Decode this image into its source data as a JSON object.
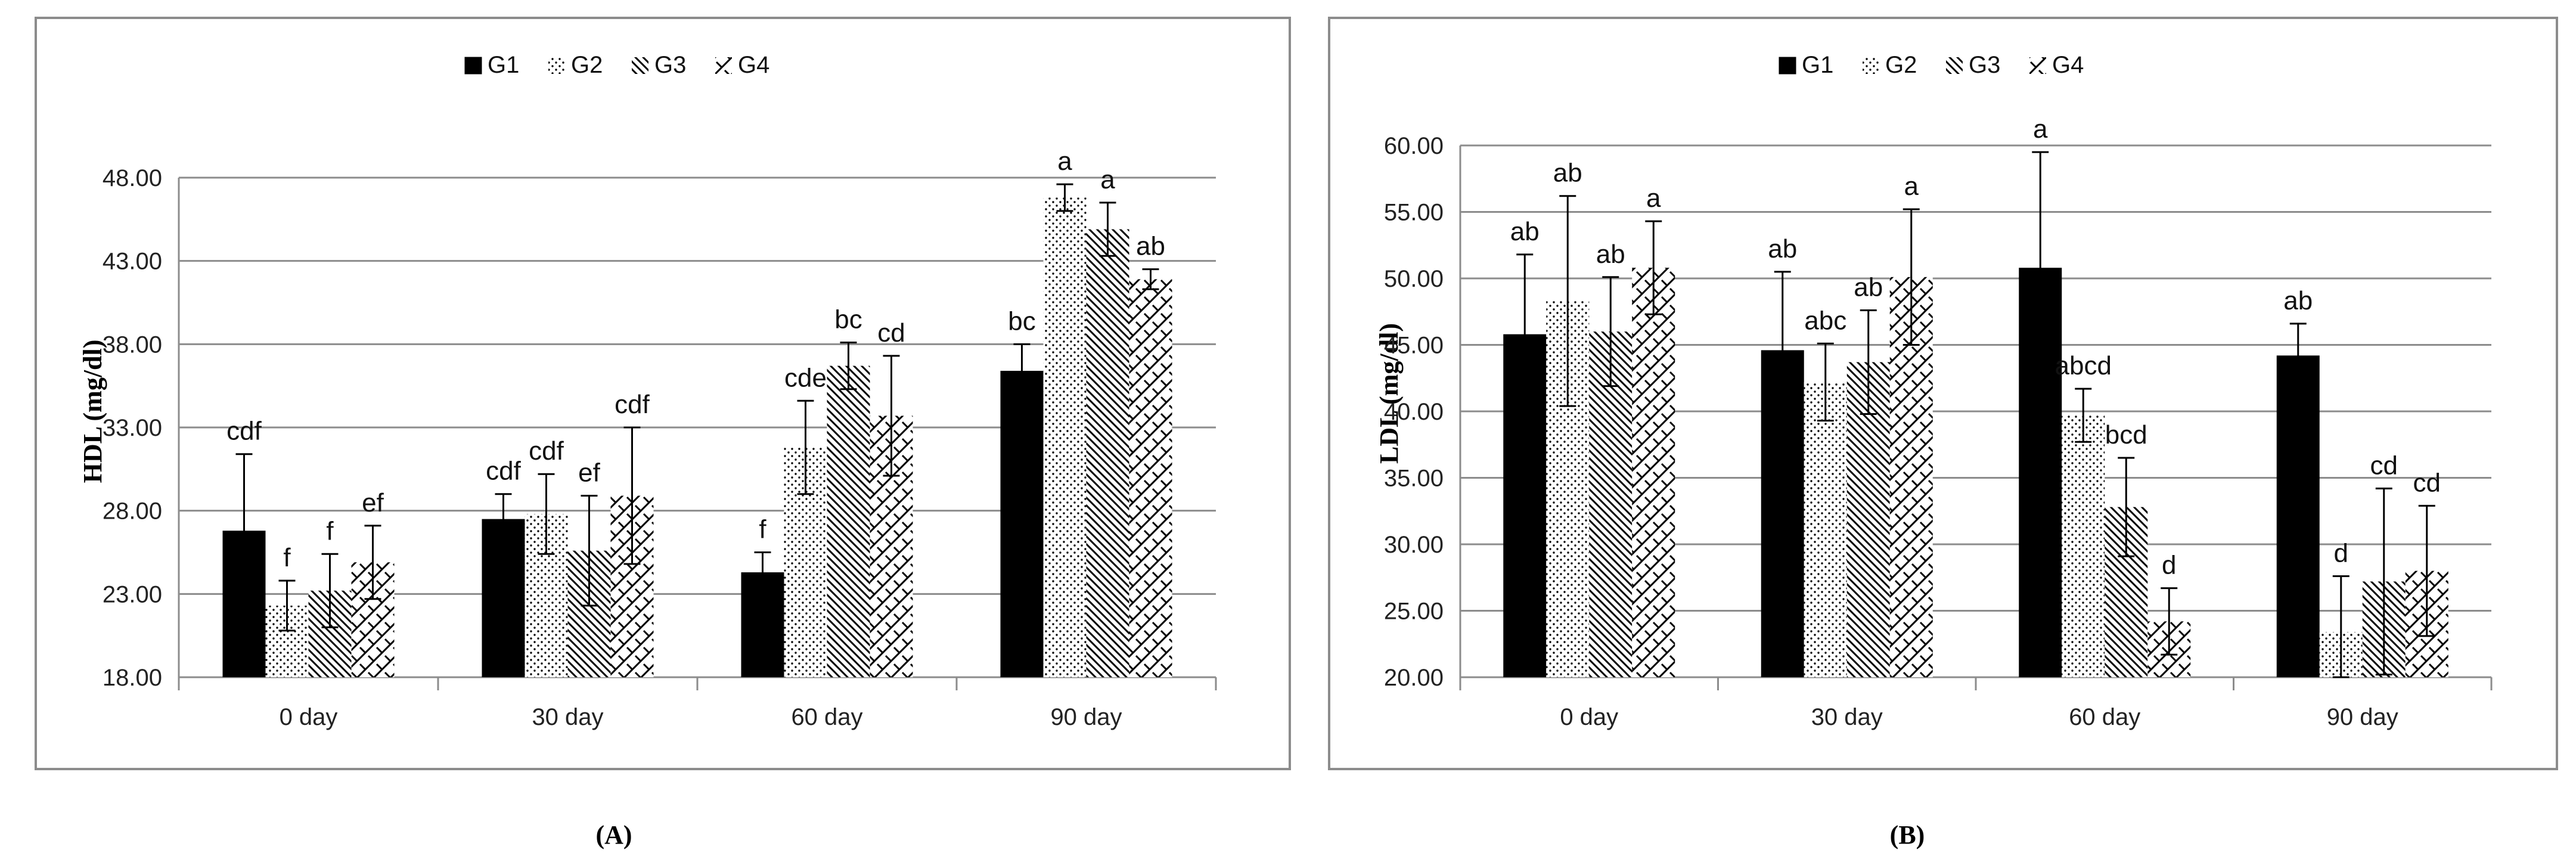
{
  "colors": {
    "frame": "#8c8c8c",
    "grid": "#8c8c8c",
    "bar_stroke": "#000000",
    "ink": "#000000"
  },
  "legend": [
    {
      "name": "G1",
      "pattern": "solid"
    },
    {
      "name": "G2",
      "pattern": "dots"
    },
    {
      "name": "G3",
      "pattern": "diagonal"
    },
    {
      "name": "G4",
      "pattern": "zigzag"
    }
  ],
  "chart_data": [
    {
      "type": "bar",
      "panel_label": "(A)",
      "ylabel": "HDL (mg/dl)",
      "xlabel": "",
      "categories": [
        "0 day",
        "30 day",
        "60 day",
        "90 day"
      ],
      "ylim": [
        18,
        48
      ],
      "yticks": [
        "18.00",
        "23.00",
        "28.00",
        "33.00",
        "38.00",
        "43.00",
        "48.00"
      ],
      "grid": true,
      "legend_position": "top-center",
      "series": [
        {
          "name": "G1",
          "values": [
            26.8,
            27.5,
            24.3,
            36.4
          ],
          "errors": [
            4.6,
            1.5,
            1.2,
            1.6
          ],
          "labels": [
            "cdf",
            "cdf",
            "f",
            "bc"
          ]
        },
        {
          "name": "G2",
          "values": [
            22.3,
            27.8,
            31.8,
            46.8
          ],
          "errors": [
            1.5,
            2.4,
            2.8,
            0.8
          ],
          "labels": [
            "f",
            "cdf",
            "cde",
            "a"
          ]
        },
        {
          "name": "G3",
          "values": [
            23.2,
            25.6,
            36.7,
            44.9
          ],
          "errors": [
            2.2,
            3.3,
            1.4,
            1.6
          ],
          "labels": [
            "f",
            "ef",
            "bc",
            "a"
          ]
        },
        {
          "name": "G4",
          "values": [
            24.9,
            28.9,
            33.7,
            41.9
          ],
          "errors": [
            2.2,
            4.1,
            3.6,
            0.6
          ],
          "labels": [
            "ef",
            "cdf",
            "cd",
            "ab"
          ]
        }
      ]
    },
    {
      "type": "bar",
      "panel_label": "(B)",
      "ylabel": "LDL (mg/dl)",
      "xlabel": "",
      "categories": [
        "0 day",
        "30 day",
        "60 day",
        "90 day"
      ],
      "ylim": [
        20,
        60
      ],
      "yticks": [
        "20.00",
        "25.00",
        "30.00",
        "35.00",
        "40.00",
        "45.00",
        "50.00",
        "55.00",
        "60.00"
      ],
      "grid": true,
      "legend_position": "top-center",
      "series": [
        {
          "name": "G1",
          "values": [
            45.8,
            44.6,
            50.8,
            44.2
          ],
          "errors": [
            6.0,
            5.9,
            8.7,
            2.4
          ],
          "labels": [
            "ab",
            "ab",
            "a",
            "ab"
          ]
        },
        {
          "name": "G2",
          "values": [
            48.3,
            42.2,
            39.7,
            23.4
          ],
          "errors": [
            7.9,
            2.9,
            2.0,
            4.2
          ],
          "labels": [
            "ab",
            "abc",
            "abcd",
            "d"
          ]
        },
        {
          "name": "G3",
          "values": [
            46.0,
            43.7,
            32.8,
            27.2
          ],
          "errors": [
            4.1,
            3.9,
            3.7,
            7.0
          ],
          "labels": [
            "ab",
            "ab",
            "bcd",
            "cd"
          ]
        },
        {
          "name": "G4",
          "values": [
            50.8,
            50.1,
            24.2,
            28.0
          ],
          "errors": [
            3.5,
            5.1,
            2.5,
            4.9
          ],
          "labels": [
            "a",
            "a",
            "d",
            "cd"
          ]
        }
      ]
    }
  ]
}
